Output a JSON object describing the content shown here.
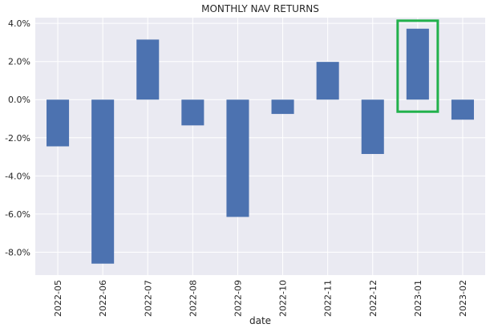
{
  "chart_data": {
    "type": "bar",
    "title": "MONTHLY NAV RETURNS",
    "xlabel": "date",
    "ylabel": "",
    "categories": [
      "2022-05",
      "2022-06",
      "2022-07",
      "2022-08",
      "2022-09",
      "2022-10",
      "2022-11",
      "2022-12",
      "2023-01",
      "2023-02"
    ],
    "values": [
      -2.45,
      -8.6,
      3.15,
      -1.35,
      -6.15,
      -0.75,
      1.98,
      -2.85,
      3.72,
      -1.05
    ],
    "ylim": [
      -9.2,
      4.3
    ],
    "yticks": [
      4.0,
      2.0,
      0.0,
      -2.0,
      -4.0,
      -6.0,
      -8.0
    ],
    "ytick_labels": [
      "4.0%",
      "2.0%",
      "0.0%",
      "-2.0%",
      "-4.0%",
      "-6.0%",
      "-8.0%"
    ],
    "highlight_category": "2023-01",
    "grid": true,
    "legend": "none",
    "colors": {
      "bar": "#4c72b0",
      "plot_background": "#eaeaf2",
      "grid": "#ffffff",
      "highlight_box": "#22b14c",
      "text": "#262626"
    }
  }
}
